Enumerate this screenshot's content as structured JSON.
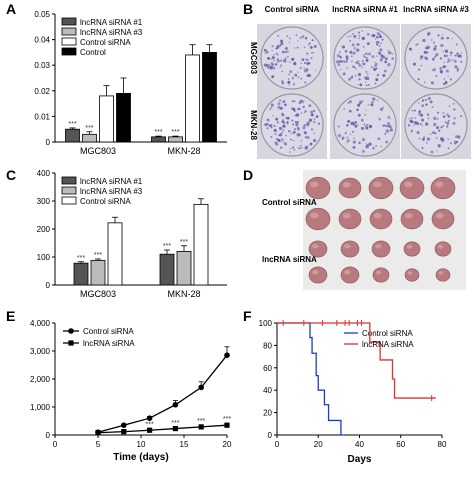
{
  "panels": {
    "A": "A",
    "B": "B",
    "C": "C",
    "D": "D",
    "E": "E",
    "F": "F"
  },
  "stars": "***",
  "chart_data": [
    {
      "panel": "A",
      "type": "bar",
      "categories": [
        "MGC803",
        "MKN-28"
      ],
      "series": [
        {
          "name": "lncRNA siRNA #1",
          "values": [
            0.005,
            0.002
          ],
          "errors": [
            0.0005,
            0.0003
          ],
          "color": "#555555",
          "sig": [
            true,
            true
          ]
        },
        {
          "name": "lncRNA siRNA #3",
          "values": [
            0.003,
            0.002
          ],
          "errors": [
            0.001,
            0.0003
          ],
          "color": "#bbbbbb",
          "sig": [
            true,
            true
          ]
        },
        {
          "name": "Control siRNA",
          "values": [
            0.018,
            0.034
          ],
          "errors": [
            0.004,
            0.004
          ],
          "color": "#ffffff",
          "sig": [
            false,
            false
          ]
        },
        {
          "name": "Control",
          "values": [
            0.019,
            0.035
          ],
          "errors": [
            0.006,
            0.003
          ],
          "color": "#000000",
          "sig": [
            false,
            false
          ]
        }
      ],
      "ylim": [
        0,
        0.05
      ],
      "yticks": [
        "0",
        "0.01",
        "0.02",
        "0.03",
        "0.04",
        "0.05"
      ],
      "legend_placement": "top-left"
    },
    {
      "panel": "C",
      "type": "bar",
      "categories": [
        "MGC803",
        "MKN-28"
      ],
      "series": [
        {
          "name": "lncRNA siRNA #1",
          "values": [
            78,
            110
          ],
          "errors": [
            5,
            15
          ],
          "color": "#555555",
          "sig": [
            true,
            true
          ]
        },
        {
          "name": "lncRNA siRNA #3",
          "values": [
            88,
            120
          ],
          "errors": [
            5,
            20
          ],
          "color": "#bbbbbb",
          "sig": [
            true,
            true
          ]
        },
        {
          "name": "Control siRNA",
          "values": [
            222,
            288
          ],
          "errors": [
            20,
            20
          ],
          "color": "#ffffff",
          "sig": [
            false,
            false
          ]
        }
      ],
      "ylim": [
        0,
        400
      ],
      "yticks": [
        "0",
        "100",
        "200",
        "300",
        "400"
      ],
      "legend_placement": "top-left"
    },
    {
      "panel": "E",
      "type": "line",
      "xlabel": "Time (days)",
      "x": [
        5,
        8,
        11,
        14,
        17,
        20
      ],
      "series": [
        {
          "name": "Control siRNA",
          "values": [
            100,
            350,
            600,
            1080,
            1700,
            2850
          ],
          "errors": [
            30,
            40,
            60,
            150,
            200,
            300
          ],
          "marker": "circle"
        },
        {
          "name": "lncRNA siRNA",
          "values": [
            80,
            120,
            170,
            230,
            290,
            350
          ],
          "errors": [
            10,
            15,
            20,
            25,
            30,
            35
          ],
          "marker": "square",
          "sig_points": [
            11,
            14,
            17,
            20
          ]
        }
      ],
      "xlim": [
        0,
        20
      ],
      "ylim": [
        0,
        4000
      ],
      "xticks": [
        "0",
        "5",
        "10",
        "15",
        "20"
      ],
      "yticks": [
        "0",
        "1,000",
        "2,000",
        "3,000",
        "4,000"
      ],
      "legend_placement": "top-left"
    },
    {
      "panel": "F",
      "type": "line",
      "subtype": "survival",
      "xlabel": "Days",
      "series": [
        {
          "name": "Control siRNA",
          "color": "#1a3ccc",
          "steps": [
            [
              0,
              100
            ],
            [
              16,
              100
            ],
            [
              16,
              87
            ],
            [
              17,
              87
            ],
            [
              17,
              73
            ],
            [
              19,
              73
            ],
            [
              19,
              53
            ],
            [
              20,
              53
            ],
            [
              20,
              40
            ],
            [
              23,
              40
            ],
            [
              23,
              27
            ],
            [
              25,
              27
            ],
            [
              25,
              13
            ],
            [
              31,
              13
            ],
            [
              31,
              0
            ],
            [
              33,
              0
            ]
          ],
          "censor": []
        },
        {
          "name": "lncRNA siRNA",
          "color": "#e03030",
          "steps": [
            [
              0,
              100
            ],
            [
              45,
              100
            ],
            [
              45,
              83
            ],
            [
              50,
              83
            ],
            [
              50,
              67
            ],
            [
              56,
              67
            ],
            [
              56,
              50
            ],
            [
              57,
              50
            ],
            [
              57,
              33
            ],
            [
              77,
              33
            ]
          ],
          "censor": [
            [
              3,
              100
            ],
            [
              13,
              100
            ],
            [
              22,
              100
            ],
            [
              29,
              100
            ],
            [
              33,
              100
            ],
            [
              35,
              100
            ],
            [
              39,
              100
            ],
            [
              41,
              100
            ],
            [
              75,
              33
            ]
          ]
        }
      ],
      "xlim": [
        0,
        80
      ],
      "ylim": [
        0,
        100
      ],
      "xticks": [
        "0",
        "20",
        "40",
        "60",
        "80"
      ],
      "yticks": [
        "0",
        "20",
        "40",
        "60",
        "80",
        "100"
      ],
      "legend_placement": "top-right"
    }
  ],
  "panel_b": {
    "column_headers": [
      "Control siRNA",
      "lncRNA siRNA #1",
      "lncRNA siRNA #3"
    ],
    "row_labels": [
      "MGC803",
      "MKN-28"
    ],
    "colony_density": [
      [
        0.75,
        0.85,
        0.55
      ],
      [
        0.9,
        0.55,
        0.6
      ]
    ],
    "dish_color": "#ddd8e6",
    "colony_color": "#6a5aa8"
  },
  "panel_d": {
    "row_labels": [
      "Control siRNA",
      "lncRNA siRNA"
    ],
    "tumors_per_row": [
      [
        5,
        5
      ],
      [
        5,
        5
      ]
    ],
    "tumor_color": "#b87a7e",
    "background": "#ebebeb"
  }
}
